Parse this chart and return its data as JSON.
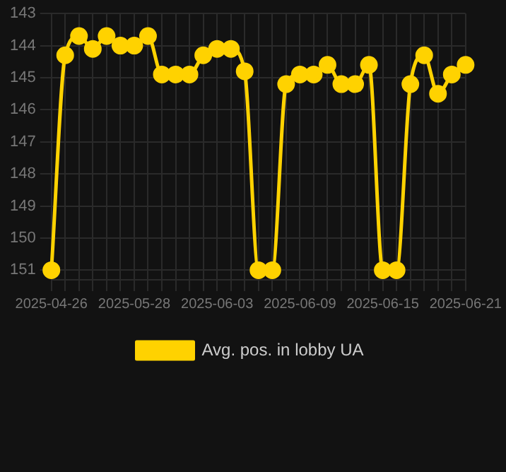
{
  "chart_data": {
    "type": "line",
    "categories": [
      "2025-04-26",
      null,
      null,
      null,
      null,
      null,
      "2025-05-28",
      null,
      null,
      null,
      null,
      null,
      "2025-06-03",
      null,
      null,
      null,
      null,
      null,
      "2025-06-09",
      null,
      null,
      null,
      null,
      null,
      "2025-06-15",
      null,
      null,
      null,
      null,
      null,
      "2025-06-21"
    ],
    "series": [
      {
        "name": "Avg. pos. in lobby UA",
        "color": "#ffd200",
        "values": [
          151,
          144.3,
          143.7,
          144.1,
          143.7,
          144.0,
          144.0,
          143.7,
          144.9,
          144.9,
          144.9,
          144.3,
          144.1,
          144.1,
          144.8,
          151,
          151,
          145.2,
          144.9,
          144.9,
          144.6,
          145.2,
          145.2,
          144.6,
          151,
          151,
          145.2,
          144.3,
          145.5,
          144.9,
          144.6
        ]
      }
    ],
    "ylim": [
      151.3,
      143
    ],
    "yticks": [
      143,
      144,
      145,
      146,
      147,
      148,
      149,
      150,
      151
    ],
    "grid": true,
    "legend": "bottom",
    "marker": "circle",
    "line_style": "solid"
  }
}
